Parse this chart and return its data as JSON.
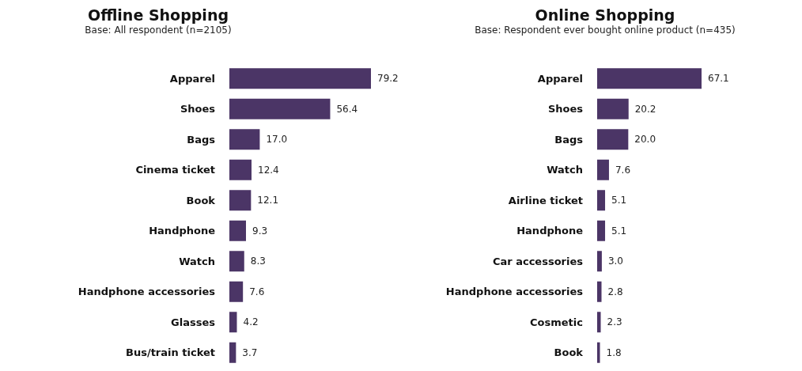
{
  "chart_data": [
    {
      "type": "bar",
      "orientation": "horizontal",
      "title": "Offline Shopping",
      "subtitle": "Base: All respondent (n=2105)",
      "categories": [
        "Apparel",
        "Shoes",
        "Bags",
        "Cinema ticket",
        "Book",
        "Handphone",
        "Watch",
        "Handphone accessories",
        "Glasses",
        "Bus/train ticket"
      ],
      "values": [
        79.2,
        56.4,
        17.0,
        12.4,
        12.1,
        9.3,
        8.3,
        7.6,
        4.2,
        3.7
      ],
      "color": "#4b3566",
      "value_labels": [
        "79.2",
        "56.4",
        "17.0",
        "12.4",
        "12.1",
        "9.3",
        "8.3",
        "7.6",
        "4.2",
        "3.7"
      ]
    },
    {
      "type": "bar",
      "orientation": "horizontal",
      "title": "Online Shopping",
      "subtitle": "Base: Respondent ever bought online product (n=435)",
      "categories": [
        "Apparel",
        "Shoes",
        "Bags",
        "Watch",
        "Airline ticket",
        "Handphone",
        "Car accessories",
        "Handphone accessories",
        "Cosmetic",
        "Book"
      ],
      "values": [
        67.1,
        20.2,
        20.0,
        7.6,
        5.1,
        5.1,
        3.0,
        2.8,
        2.3,
        1.8
      ],
      "color": "#4b3566",
      "value_labels": [
        "67.1",
        "20.2",
        "20.0",
        "7.6",
        "5.1",
        "5.1",
        "3.0",
        "2.8",
        "2.3",
        "1.8"
      ]
    }
  ]
}
